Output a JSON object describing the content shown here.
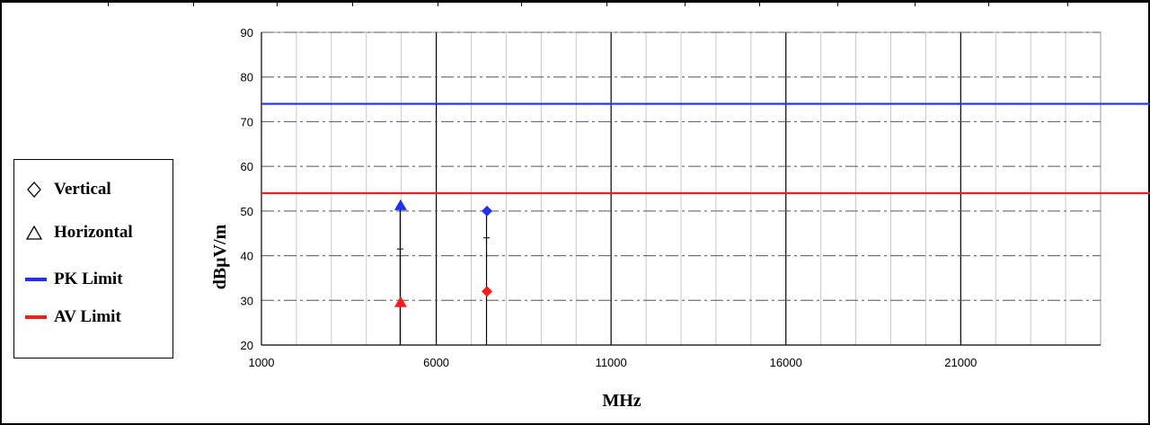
{
  "chart_data": {
    "type": "scatter",
    "xlabel": "MHz",
    "ylabel": "dBμV/m",
    "xlim": [
      1000,
      25000
    ],
    "ylim": [
      20,
      90
    ],
    "x_ticks": [
      1000,
      6000,
      11000,
      16000,
      21000
    ],
    "y_ticks": [
      20,
      30,
      40,
      50,
      60,
      70,
      80,
      90
    ],
    "grid": true,
    "limits": [
      {
        "name": "PK Limit",
        "value": 74,
        "color": "#1f2fff"
      },
      {
        "name": "AV Limit",
        "value": 54,
        "color": "#ff1a1a"
      }
    ],
    "series": [
      {
        "name": "Vertical",
        "marker": "diamond",
        "points": [
          {
            "x": 7450,
            "y": 50.0,
            "color": "#1f2fff"
          },
          {
            "x": 7450,
            "y": 32.0,
            "color": "#ff1a1a"
          }
        ]
      },
      {
        "name": "Horizontal",
        "marker": "triangle",
        "points": [
          {
            "x": 4980,
            "y": 51.2,
            "color": "#1f2fff"
          },
          {
            "x": 4980,
            "y": 29.5,
            "color": "#ff1a1a"
          }
        ]
      }
    ],
    "legend_position": "left"
  },
  "legend": {
    "vertical": "Vertical",
    "horizontal": "Horizontal",
    "pk_limit": "PK Limit",
    "av_limit": "AV Limit",
    "vertical_icon": "diamond-outline",
    "horizontal_icon": "triangle-outline"
  }
}
